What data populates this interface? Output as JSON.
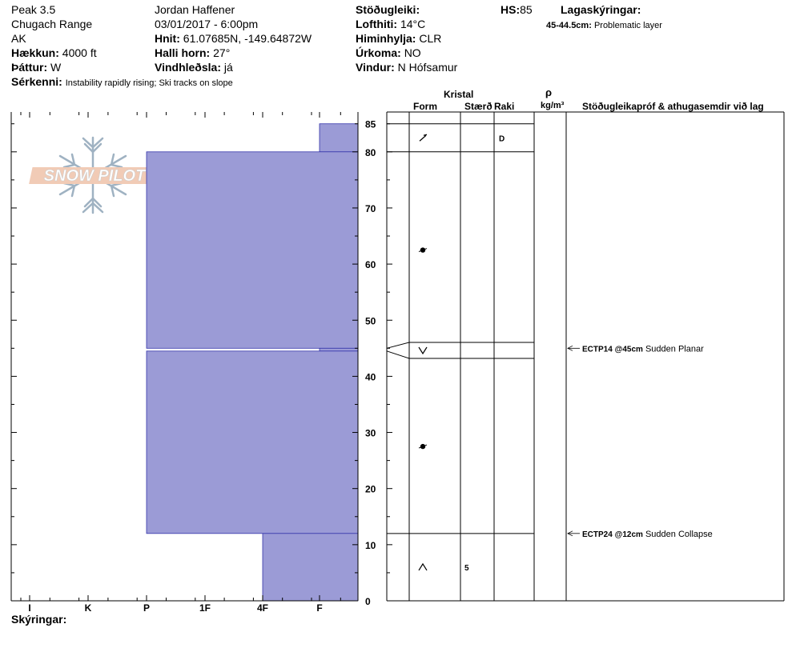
{
  "header": {
    "col1": [
      "Peak 3.5",
      "Chugach Range",
      "AK"
    ],
    "elevation": {
      "label": "Hækkun:",
      "value": "4000 ft"
    },
    "aspect": {
      "label": "Þáttur:",
      "value": "W"
    },
    "features": {
      "label": "Sérkenni:",
      "value": "Instability rapidly rising;  Ski tracks on slope"
    },
    "observer": "Jordan Haffener",
    "datetime": "03/01/2017 - 6:00pm",
    "coords": {
      "label": "Hnit:",
      "value": "61.07685N, -149.64872W"
    },
    "slope": {
      "label": "Halli horn:",
      "value": "27°"
    },
    "wind_loading": {
      "label": "Vindhleðsla:",
      "value": "já"
    },
    "stability": {
      "label": "Stöðugleiki:",
      "value": ""
    },
    "air_temp": {
      "label": "Lofthiti:",
      "value": "14°C"
    },
    "sky": {
      "label": "Himinhylja:",
      "value": "CLR"
    },
    "precip": {
      "label": "Úrkoma:",
      "value": "NO"
    },
    "wind": {
      "label": "Vindur:",
      "value": "N Hófsamur"
    },
    "hs": {
      "label": "HS:",
      "value": "85"
    },
    "layer_notes": {
      "label": "Lagaskýringar:",
      "depth": "45-44.5cm:",
      "text": "Problematic layer"
    }
  },
  "logo": {
    "text": "SNOW PILOT",
    "icon": "snowflake-icon"
  },
  "footer": {
    "legend_label": "Skýringar:"
  },
  "columns": {
    "crystal": "Kristal",
    "form": "Form",
    "size": "Stærð",
    "moisture": "Raki",
    "density_symbol": "ρ",
    "density_unit": "kg/m³",
    "tests": "Stöðugleikapróf & athugasemdir við lag"
  },
  "chart_data": {
    "type": "snow-profile",
    "x_axis": {
      "ticks": [
        "I",
        "K",
        "P",
        "1F",
        "4F",
        "F"
      ]
    },
    "y_axis": {
      "range": [
        0,
        85
      ],
      "ticks": [
        0,
        10,
        20,
        30,
        40,
        50,
        60,
        70,
        80,
        85
      ]
    },
    "hardness_layers": [
      {
        "top": 85,
        "bottom": 80,
        "hardness": "F"
      },
      {
        "top": 80,
        "bottom": 45,
        "hardness": "P"
      },
      {
        "top": 45,
        "bottom": 44.5,
        "hardness": "F"
      },
      {
        "top": 44.5,
        "bottom": 12,
        "hardness": "P"
      },
      {
        "top": 12,
        "bottom": 0,
        "hardness": "4F"
      }
    ],
    "layer_boundaries": [
      85,
      80,
      45,
      44.5,
      12
    ],
    "crystal_symbols": [
      {
        "depth": 82.5,
        "form": "decomposing",
        "size": "",
        "moisture": "D"
      },
      {
        "depth": 62.5,
        "form": "rounded",
        "size": "",
        "moisture": ""
      },
      {
        "depth": 44.75,
        "form": "depth-hoar",
        "size": "",
        "moisture": ""
      },
      {
        "depth": 27.5,
        "form": "rounded",
        "size": "",
        "moisture": ""
      },
      {
        "depth": 6,
        "form": "faceted",
        "size": "5",
        "moisture": ""
      }
    ],
    "stability_tests": [
      {
        "depth": 45,
        "code": "ECTP14 @45cm",
        "result": "Sudden Planar"
      },
      {
        "depth": 12,
        "code": "ECTP24 @12cm",
        "result": "Sudden Collapse"
      }
    ]
  }
}
